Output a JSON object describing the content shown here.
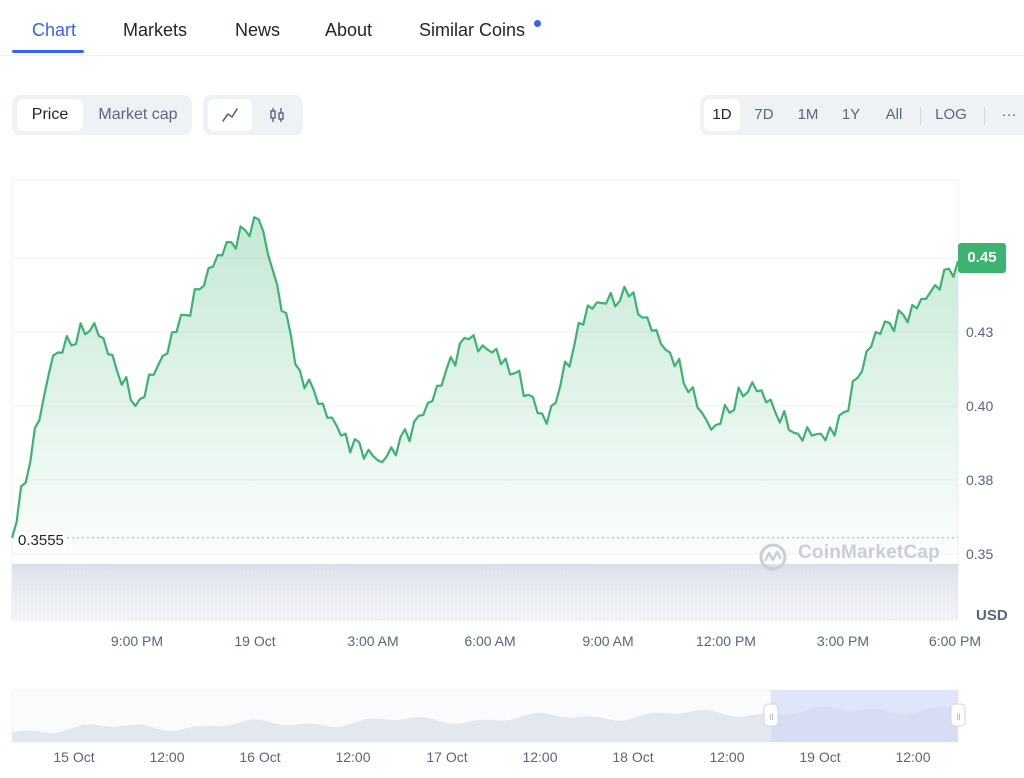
{
  "tabs": [
    {
      "label": "Chart",
      "active": true
    },
    {
      "label": "Markets"
    },
    {
      "label": "News"
    },
    {
      "label": "About"
    },
    {
      "label": "Similar Coins"
    }
  ],
  "toolbar": {
    "metric": [
      "Price",
      "Market cap"
    ],
    "metric_active": "Price",
    "chart_type_icons": [
      "line-chart-icon",
      "candlestick-icon"
    ],
    "ranges": [
      "1D",
      "7D",
      "1M",
      "1Y",
      "All"
    ],
    "range_active": "1D",
    "log_label": "LOG",
    "more_label": "···"
  },
  "chart": {
    "current_price": "0.45",
    "low_label": "0.3555",
    "currency": "USD",
    "watermark": "CoinMarketCap",
    "accent": "#3cb371"
  },
  "chart_data": {
    "type": "area",
    "title": "",
    "xlabel": "",
    "ylabel": "USD",
    "ylim": [
      0.35,
      0.47
    ],
    "y_ticks": [
      "0.35",
      "0.38",
      "0.40",
      "0.43",
      "0.45"
    ],
    "y_tick_values": [
      0.35,
      0.375,
      0.4,
      0.425,
      0.45
    ],
    "x_ticks": [
      "9:00 PM",
      "19 Oct",
      "3:00 AM",
      "6:00 AM",
      "9:00 AM",
      "12:00 PM",
      "3:00 PM",
      "6:00 PM"
    ],
    "x": [
      "19:00",
      "20:00",
      "21:00",
      "22:00",
      "23:00",
      "00:00",
      "01:00",
      "02:00",
      "03:00",
      "04:00",
      "05:00",
      "06:00",
      "07:00",
      "08:00",
      "09:00",
      "10:00",
      "11:00",
      "12:00",
      "13:00",
      "14:00",
      "15:00",
      "16:00",
      "17:00",
      "18:00"
    ],
    "series": [
      {
        "values": [
          0.3555,
          0.417,
          0.428,
          0.4,
          0.425,
          0.451,
          0.463,
          0.412,
          0.39,
          0.381,
          0.397,
          0.423,
          0.416,
          0.394,
          0.434,
          0.437,
          0.418,
          0.392,
          0.408,
          0.391,
          0.39,
          0.425,
          0.433,
          0.449
        ]
      }
    ]
  },
  "navigator": {
    "x_ticks": [
      "15 Oct",
      "12:00",
      "16 Oct",
      "12:00",
      "17 Oct",
      "12:00",
      "18 Oct",
      "12:00",
      "19 Oct",
      "12:00"
    ],
    "selected_range": "19 Oct"
  }
}
